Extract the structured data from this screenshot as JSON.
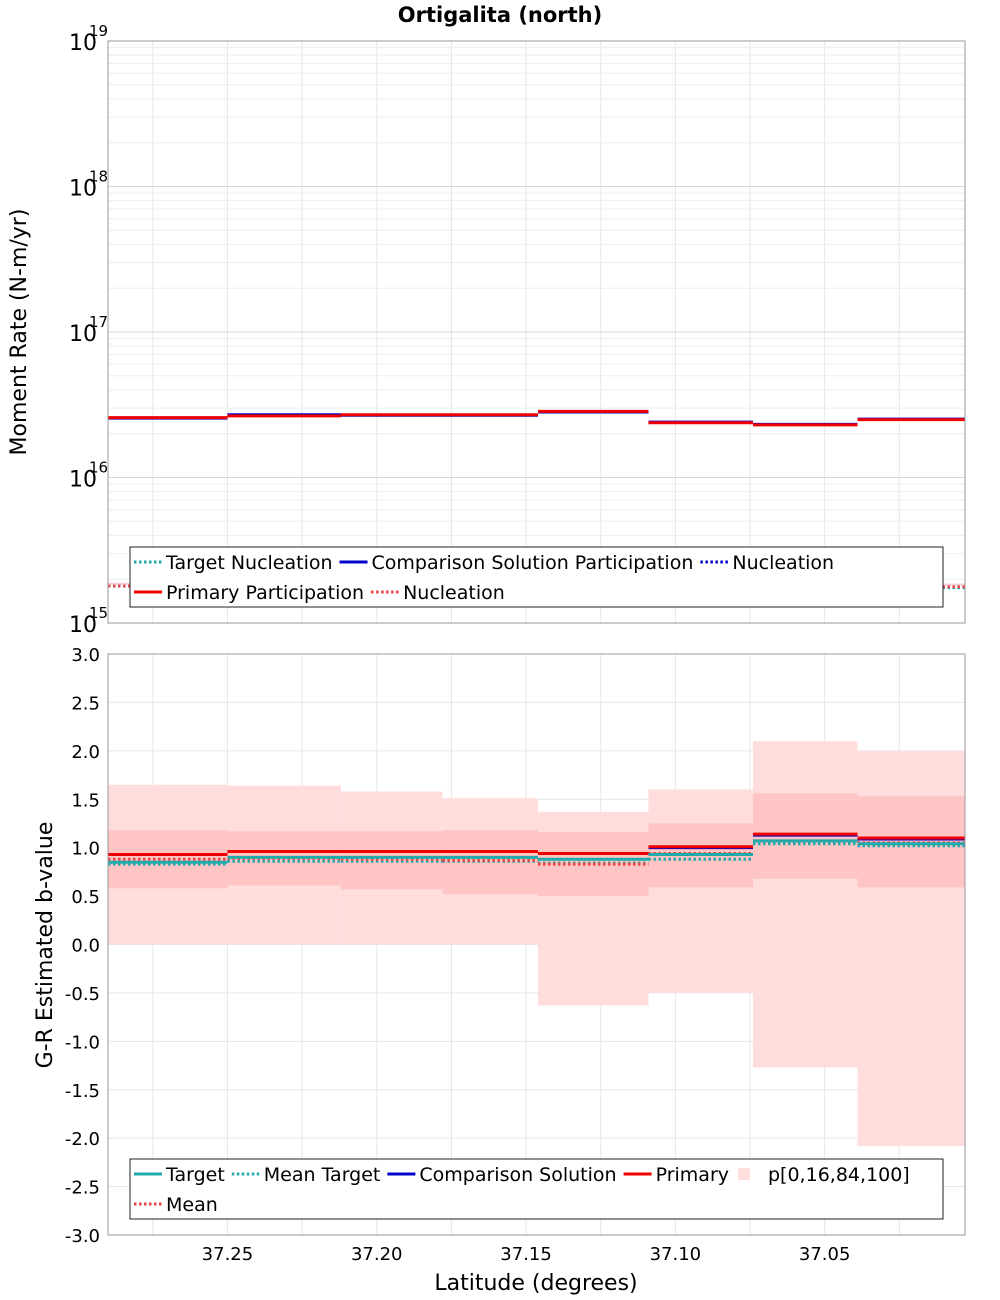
{
  "title": "Ortigalita (north)",
  "xlabel": "Latitude (degrees)",
  "x_ticks": [
    "37.25",
    "37.20",
    "37.15",
    "37.10",
    "37.05"
  ],
  "x_tick_values": [
    37.25,
    37.2,
    37.15,
    37.1,
    37.05
  ],
  "colors": {
    "target": "#22aaaa",
    "comparison": "#0000cc",
    "primary": "#ee0000",
    "primary_nucleation_dotted": "#ee4444",
    "band_outer": "#ffdddd",
    "band_inner": "#ffc4c4",
    "grid": "#e6e6e6"
  },
  "chart_data": [
    {
      "type": "line",
      "step": true,
      "x_reversed": true,
      "xlim": [
        37.29,
        37.003
      ],
      "ylabel": "Moment Rate (N-m/yr)",
      "yscale": "log",
      "ylim": [
        1000000000000000.0,
        1e+19
      ],
      "y_ticks": [
        {
          "base": "10",
          "exp": "19",
          "value": 1e+19
        },
        {
          "base": "10",
          "exp": "18",
          "value": 1e+18
        },
        {
          "base": "10",
          "exp": "17",
          "value": 1e+17
        },
        {
          "base": "10",
          "exp": "16",
          "value": 1e+16
        },
        {
          "base": "10",
          "exp": "15",
          "value": 1000000000000000.0
        }
      ],
      "x_edges": [
        37.29,
        37.25,
        37.212,
        37.178,
        37.146,
        37.109,
        37.074,
        37.039,
        37.003
      ],
      "series": [
        {
          "name": "Target Nucleation",
          "style": "dotted",
          "color": "#22aaaa",
          "values": [
            1800000000000000.0,
            1800000000000000.0,
            1850000000000000.0,
            1850000000000000.0,
            1850000000000000.0,
            1800000000000000.0,
            1750000000000000.0,
            1750000000000000.0
          ]
        },
        {
          "name": "Comparison Solution Participation",
          "style": "solid",
          "color": "#0000cc",
          "values": [
            2.56e+16,
            2.7e+16,
            2.68e+16,
            2.68e+16,
            2.82e+16,
            2.4e+16,
            2.32e+16,
            2.52e+16
          ]
        },
        {
          "name": "Nucleation",
          "style": "dotted",
          "color": "#0000cc",
          "values": [
            1800000000000000.0,
            1820000000000000.0,
            1850000000000000.0,
            1880000000000000.0,
            1950000000000000.0,
            1820000000000000.0,
            1760000000000000.0,
            1780000000000000.0
          ]
        },
        {
          "name": "Primary Participation",
          "style": "solid",
          "color": "#ee0000",
          "values": [
            2.58e+16,
            2.65e+16,
            2.7e+16,
            2.7e+16,
            2.85e+16,
            2.38e+16,
            2.3e+16,
            2.5e+16
          ]
        },
        {
          "name": "Nucleation",
          "style": "dotted",
          "color": "#ee4444",
          "values": [
            1800000000000000.0,
            1850000000000000.0,
            1880000000000000.0,
            1900000000000000.0,
            1980000000000000.0,
            1820000000000000.0,
            1760000000000000.0,
            1780000000000000.0
          ]
        }
      ],
      "legend": {
        "placement": "bottom",
        "rows": [
          [
            {
              "label": "Target Nucleation",
              "style": "dotted",
              "color": "#22aaaa"
            },
            {
              "label": "Comparison Solution Participation",
              "style": "solid",
              "color": "#0000cc"
            },
            {
              "label": "Nucleation",
              "style": "dotted",
              "color": "#0000cc"
            }
          ],
          [
            {
              "label": "Primary Participation",
              "style": "solid",
              "color": "#ee0000"
            },
            {
              "label": "Nucleation",
              "style": "dotted",
              "color": "#ee4444"
            }
          ]
        ]
      }
    },
    {
      "type": "line",
      "step": true,
      "x_reversed": true,
      "xlim": [
        37.29,
        37.003
      ],
      "ylabel": "G-R Estimated b-value",
      "ylim": [
        -3.0,
        3.0
      ],
      "y_ticks": [
        "3.0",
        "2.5",
        "2.0",
        "1.5",
        "1.0",
        "0.5",
        "0.0",
        "-0.5",
        "-1.0",
        "-1.5",
        "-2.0",
        "-2.5",
        "-3.0"
      ],
      "y_tick_values": [
        3.0,
        2.5,
        2.0,
        1.5,
        1.0,
        0.5,
        0.0,
        -0.5,
        -1.0,
        -1.5,
        -2.0,
        -2.5,
        -3.0
      ],
      "x_edges": [
        37.29,
        37.25,
        37.212,
        37.178,
        37.146,
        37.109,
        37.074,
        37.039,
        37.003
      ],
      "bands": {
        "name": "p[0,16,84,100]",
        "p0": [
          0.0,
          0.0,
          0.0,
          0.0,
          -0.63,
          -0.5,
          -1.27,
          -2.08
        ],
        "p16": [
          0.58,
          0.61,
          0.57,
          0.52,
          0.5,
          0.59,
          0.68,
          0.59
        ],
        "p84": [
          1.18,
          1.17,
          1.17,
          1.18,
          1.16,
          1.25,
          1.56,
          1.53
        ],
        "p100": [
          1.65,
          1.64,
          1.58,
          1.51,
          1.37,
          1.6,
          2.1,
          2.0
        ]
      },
      "series": [
        {
          "name": "Target",
          "style": "solid",
          "color": "#22aaaa",
          "values": [
            0.85,
            0.9,
            0.9,
            0.9,
            0.88,
            0.93,
            1.07,
            1.04
          ]
        },
        {
          "name": "Mean Target",
          "style": "dotted",
          "color": "#22aaaa",
          "values": [
            0.83,
            0.86,
            0.86,
            0.86,
            0.84,
            0.88,
            1.04,
            1.02
          ]
        },
        {
          "name": "Comparison Solution",
          "style": "solid",
          "color": "#0000cc",
          "values": [
            0.93,
            0.96,
            0.96,
            0.96,
            0.94,
            1.0,
            1.13,
            1.09
          ]
        },
        {
          "name": "Primary",
          "style": "solid",
          "color": "#ee0000",
          "values": [
            0.93,
            0.96,
            0.96,
            0.96,
            0.94,
            1.01,
            1.14,
            1.1
          ]
        },
        {
          "name": "Mean",
          "style": "dotted",
          "color": "#ee4444",
          "values": [
            0.88,
            0.89,
            0.88,
            0.87,
            0.83,
            0.94,
            1.07,
            1.05
          ]
        }
      ],
      "legend": {
        "placement": "bottom",
        "rows": [
          [
            {
              "label": "Target",
              "style": "solid",
              "color": "#22aaaa"
            },
            {
              "label": "Mean Target",
              "style": "dotted",
              "color": "#22aaaa"
            },
            {
              "label": "Comparison Solution",
              "style": "solid",
              "color": "#0000cc"
            },
            {
              "label": "Primary",
              "style": "solid",
              "color": "#ee0000"
            },
            {
              "label": "p[0,16,84,100]",
              "style": "box",
              "color": "#ffdddd"
            }
          ],
          [
            {
              "label": "Mean",
              "style": "dotted",
              "color": "#ee4444"
            }
          ]
        ]
      }
    }
  ]
}
